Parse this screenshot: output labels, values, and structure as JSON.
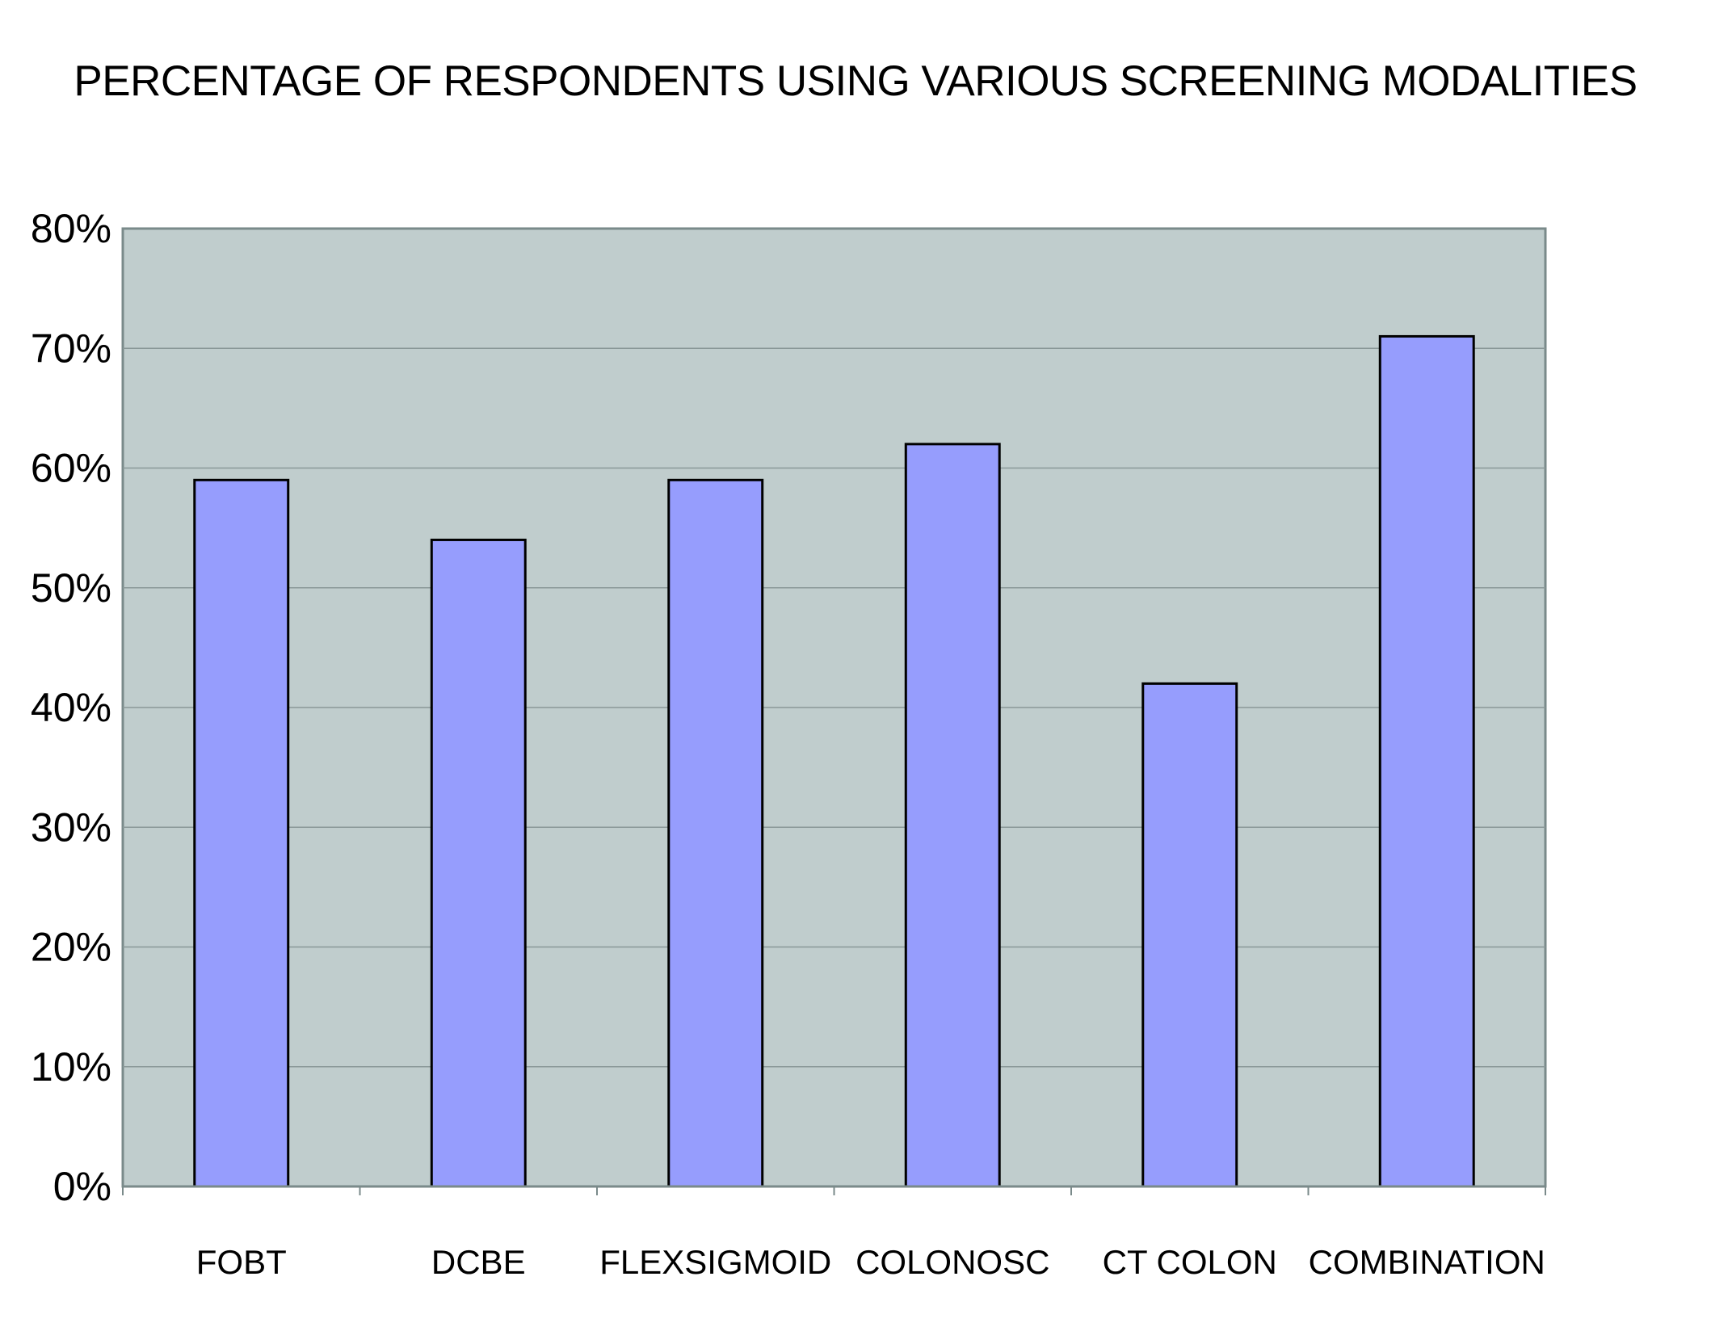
{
  "chart_data": {
    "type": "bar",
    "title": "PERCENTAGE OF RESPONDENTS USING VARIOUS SCREENING MODALITIES",
    "xlabel": "",
    "ylabel": "",
    "categories": [
      "FOBT",
      "DCBE",
      "FLEXSIGMOID",
      "COLONOSC",
      "CT COLON",
      "COMBINATION"
    ],
    "values": [
      59,
      54,
      59,
      62,
      42,
      71
    ],
    "ylim": [
      0,
      80
    ],
    "y_ticks": [
      "0%",
      "10%",
      "20%",
      "30%",
      "40%",
      "50%",
      "60%",
      "70%",
      "80%"
    ],
    "grid": true,
    "legend": "none"
  },
  "colors": {
    "plot_background": "#c0cdcd",
    "bar_fill": "#969dfd",
    "bar_stroke": "#000000",
    "gridline": "#8a9898",
    "axis": "#7a8a8a"
  }
}
